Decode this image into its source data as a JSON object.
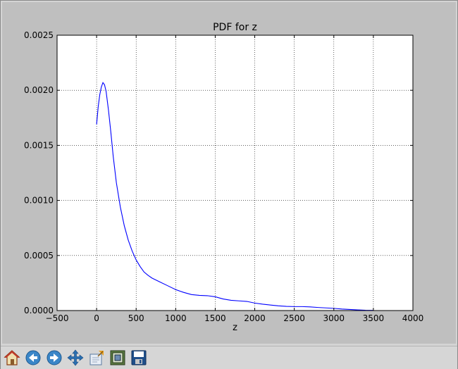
{
  "chart_data": {
    "type": "line",
    "title": "PDF for z",
    "xlabel": "z",
    "ylabel": "",
    "xlim": [
      -500,
      4000
    ],
    "ylim": [
      0,
      0.0025
    ],
    "xticks": [
      "−500",
      "0",
      "500",
      "1000",
      "1500",
      "2000",
      "2500",
      "3000",
      "3500",
      "4000"
    ],
    "yticks": [
      "0.0000",
      "0.0005",
      "0.0010",
      "0.0015",
      "0.0020",
      "0.0025"
    ],
    "grid": true,
    "series_color": "#0000ff",
    "x": [
      0,
      20,
      40,
      60,
      80,
      100,
      120,
      150,
      180,
      210,
      250,
      300,
      350,
      400,
      450,
      500,
      550,
      600,
      650,
      700,
      800,
      900,
      1000,
      1100,
      1200,
      1300,
      1400,
      1500,
      1600,
      1700,
      1800,
      1900,
      2000,
      2100,
      2200,
      2300,
      2400,
      2500,
      2600,
      2700,
      2800,
      2900,
      3000,
      3100,
      3200,
      3300,
      3400,
      3500
    ],
    "y": [
      0.00169,
      0.00185,
      0.00196,
      0.00203,
      0.00207,
      0.00205,
      0.00199,
      0.00182,
      0.00162,
      0.0014,
      0.00116,
      0.00094,
      0.00077,
      0.00064,
      0.00054,
      0.00046,
      0.0004,
      0.00035,
      0.00032,
      0.000295,
      0.00026,
      0.000225,
      0.00019,
      0.000165,
      0.000145,
      0.000138,
      0.000135,
      0.000125,
      0.000105,
      9.3e-05,
      8.8e-05,
      8.3e-05,
      6.8e-05,
      5.8e-05,
      5e-05,
      4.3e-05,
      3.8e-05,
      3.6e-05,
      3.6e-05,
      3.3e-05,
      2.8e-05,
      2.4e-05,
      2e-05,
      1.4e-05,
      1e-05,
      6e-06,
      3e-06,
      2e-06
    ]
  },
  "toolbar": {
    "tools": [
      {
        "name": "home-button",
        "icon": "home-icon"
      },
      {
        "name": "back-button",
        "icon": "back-arrow-icon"
      },
      {
        "name": "forward-button",
        "icon": "forward-arrow-icon"
      },
      {
        "name": "pan-button",
        "icon": "move-icon"
      },
      {
        "name": "zoom-button",
        "icon": "zoom-rect-icon"
      },
      {
        "name": "subplots-button",
        "icon": "subplots-icon"
      },
      {
        "name": "save-button",
        "icon": "floppy-disk-icon"
      }
    ]
  }
}
